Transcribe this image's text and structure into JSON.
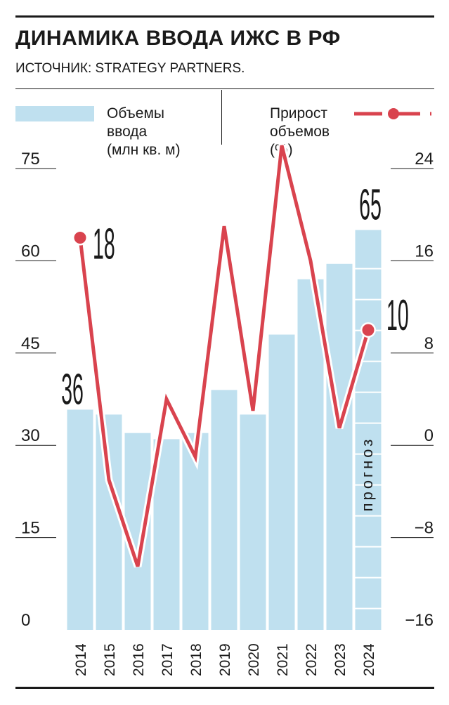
{
  "header": {
    "title": "ДИНАМИКА ВВОДА ИЖС В РФ",
    "source": "ИСТОЧНИК: STRATEGY PARTNERS."
  },
  "legend": {
    "bars_line1": "Объемы",
    "bars_line2": "ввода",
    "bars_line3": "(млн кв. м)",
    "line_line1": "Прирост",
    "line_line2": "объемов",
    "line_line3": "(%)"
  },
  "forecast_label": "прогноз",
  "colors": {
    "bar": "#bfe0ef",
    "line": "#d9434e",
    "text": "#1a1a1a",
    "grid": "#1a1a1a"
  },
  "chart_data": {
    "type": "bar+line",
    "categories": [
      "2014",
      "2015",
      "2016",
      "2017",
      "2018",
      "2019",
      "2020",
      "2021",
      "2022",
      "2023",
      "2024"
    ],
    "series": [
      {
        "name": "Объемы ввода (млн кв. м)",
        "type": "bar",
        "axis": "left",
        "values": [
          35.8,
          35,
          32,
          31,
          32,
          39,
          35,
          48,
          57,
          59.5,
          65
        ],
        "forecast_from_index": 10
      },
      {
        "name": "Прирост объемов (%)",
        "type": "line",
        "axis": "right",
        "values": [
          18,
          -3,
          -10.5,
          4,
          -1,
          19,
          3,
          26,
          16,
          1.5,
          10
        ]
      }
    ],
    "data_labels": [
      {
        "series": 0,
        "index": 0,
        "text": "36"
      },
      {
        "series": 0,
        "index": 10,
        "text": "65"
      },
      {
        "series": 1,
        "index": 0,
        "text": "18"
      },
      {
        "series": 1,
        "index": 10,
        "text": "10"
      }
    ],
    "y_left": {
      "ticks": [
        0,
        15,
        30,
        45,
        60,
        75
      ],
      "tick_labels": [
        "0",
        "15",
        "30",
        "45",
        "60",
        "75"
      ],
      "range": [
        0,
        75
      ]
    },
    "y_right": {
      "ticks": [
        -16,
        -8,
        0,
        8,
        16,
        24
      ],
      "tick_labels": [
        "−16",
        "−8",
        "0",
        "8",
        "16",
        "24"
      ],
      "range": [
        -16,
        24
      ]
    },
    "grid": false,
    "legend_position": "top"
  }
}
